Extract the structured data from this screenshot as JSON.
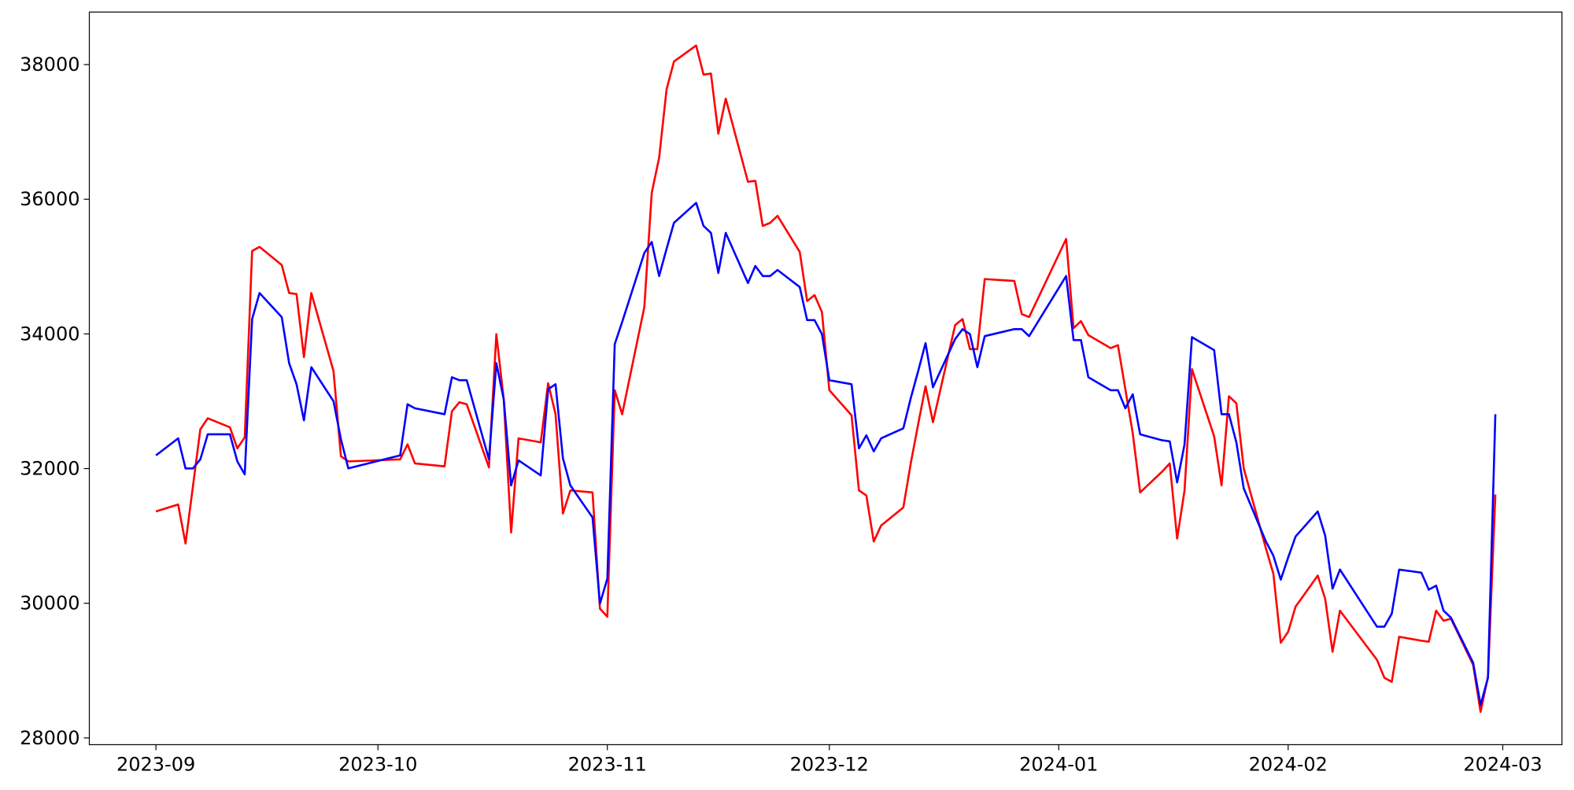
{
  "chart_data": {
    "type": "line",
    "x": [
      "2023-09-01",
      "2023-09-04",
      "2023-09-05",
      "2023-09-06",
      "2023-09-07",
      "2023-09-08",
      "2023-09-11",
      "2023-09-12",
      "2023-09-13",
      "2023-09-14",
      "2023-09-15",
      "2023-09-18",
      "2023-09-19",
      "2023-09-20",
      "2023-09-21",
      "2023-09-22",
      "2023-09-25",
      "2023-09-26",
      "2023-09-27",
      "2023-10-04",
      "2023-10-05",
      "2023-10-06",
      "2023-10-10",
      "2023-10-11",
      "2023-10-12",
      "2023-10-13",
      "2023-10-16",
      "2023-10-17",
      "2023-10-18",
      "2023-10-19",
      "2023-10-20",
      "2023-10-23",
      "2023-10-24",
      "2023-10-25",
      "2023-10-26",
      "2023-10-27",
      "2023-10-30",
      "2023-10-31",
      "2023-11-01",
      "2023-11-02",
      "2023-11-03",
      "2023-11-06",
      "2023-11-07",
      "2023-11-08",
      "2023-11-09",
      "2023-11-10",
      "2023-11-13",
      "2023-11-14",
      "2023-11-15",
      "2023-11-16",
      "2023-11-17",
      "2023-11-20",
      "2023-11-21",
      "2023-11-22",
      "2023-11-23",
      "2023-11-24",
      "2023-11-27",
      "2023-11-28",
      "2023-11-29",
      "2023-11-30",
      "2023-12-01",
      "2023-12-04",
      "2023-12-05",
      "2023-12-06",
      "2023-12-07",
      "2023-12-08",
      "2023-12-11",
      "2023-12-12",
      "2023-12-13",
      "2023-12-14",
      "2023-12-15",
      "2023-12-18",
      "2023-12-19",
      "2023-12-20",
      "2023-12-21",
      "2023-12-22",
      "2023-12-26",
      "2023-12-27",
      "2023-12-28",
      "2024-01-02",
      "2024-01-03",
      "2024-01-04",
      "2024-01-05",
      "2024-01-08",
      "2024-01-09",
      "2024-01-10",
      "2024-01-11",
      "2024-01-12",
      "2024-01-15",
      "2024-01-16",
      "2024-01-17",
      "2024-01-18",
      "2024-01-19",
      "2024-01-22",
      "2024-01-23",
      "2024-01-24",
      "2024-01-25",
      "2024-01-26",
      "2024-01-29",
      "2024-01-30",
      "2024-01-31",
      "2024-02-01",
      "2024-02-02",
      "2024-02-05",
      "2024-02-06",
      "2024-02-07",
      "2024-02-08",
      "2024-02-13",
      "2024-02-14",
      "2024-02-15",
      "2024-02-16",
      "2024-02-19",
      "2024-02-20",
      "2024-02-21",
      "2024-02-22",
      "2024-02-23",
      "2024-02-26",
      "2024-02-27",
      "2024-02-28",
      "2024-02-29"
    ],
    "series": [
      {
        "color": "#ff0000",
        "values": [
          31363,
          31467,
          30887,
          31735,
          32583,
          32747,
          32613,
          32300,
          32464,
          35232,
          35292,
          35024,
          34607,
          34592,
          33655,
          34607,
          33446,
          32182,
          32107,
          32137,
          32360,
          32077,
          32033,
          32851,
          32985,
          32955,
          32018,
          33997,
          33030,
          31051,
          32449,
          32390,
          33268,
          32807,
          31333,
          31676,
          31646,
          29920,
          29801,
          33164,
          32807,
          34399,
          36095,
          36616,
          37628,
          38045,
          38283,
          37851,
          37866,
          36973,
          37494,
          36259,
          36274,
          35604,
          35649,
          35753,
          35217,
          34488,
          34577,
          34324,
          33164,
          32792,
          31676,
          31601,
          30917,
          31155,
          31423,
          32077,
          32658,
          33223,
          32688,
          34131,
          34220,
          33774,
          33774,
          34815,
          34786,
          34295,
          34250,
          35411,
          34086,
          34190,
          33982,
          33789,
          33833,
          33179,
          32524,
          31646,
          31958,
          32077,
          30961,
          31676,
          33476,
          32479,
          31750,
          33074,
          32970,
          32003,
          30813,
          30440,
          29414,
          29577,
          29949,
          30411,
          30068,
          29280,
          29890,
          29161,
          28893,
          28833,
          29503,
          29444,
          29429,
          29890,
          29741,
          29771,
          29086,
          28387,
          28908,
          31616
        ]
      },
      {
        "color": "#0000ff",
        "values": [
          32196,
          32449,
          32003,
          32003,
          32137,
          32509,
          32509,
          32107,
          31914,
          34220,
          34607,
          34250,
          33565,
          33253,
          32717,
          33506,
          33000,
          32435,
          32003,
          32196,
          32955,
          32896,
          32807,
          33357,
          33313,
          33313,
          32137,
          33565,
          33030,
          31750,
          32122,
          31899,
          33179,
          33253,
          32152,
          31750,
          31274,
          29994,
          30366,
          33848,
          34176,
          35202,
          35366,
          34860,
          35262,
          35649,
          35946,
          35604,
          35500,
          34905,
          35500,
          34756,
          35009,
          34860,
          34860,
          34949,
          34696,
          34205,
          34205,
          33997,
          33313,
          33253,
          32300,
          32494,
          32256,
          32449,
          32598,
          33045,
          33446,
          33863,
          33208,
          33923,
          34071,
          33997,
          33506,
          33967,
          34071,
          34071,
          33967,
          34860,
          33908,
          33908,
          33357,
          33164,
          33164,
          32896,
          33104,
          32509,
          32420,
          32405,
          31795,
          32360,
          33952,
          33759,
          32807,
          32807,
          32390,
          31705,
          30917,
          30708,
          30351,
          30679,
          30991,
          31363,
          31006,
          30217,
          30500,
          29652,
          29652,
          29845,
          30500,
          30455,
          30202,
          30262,
          29890,
          29786,
          29116,
          28491,
          28893,
          32807
        ]
      }
    ],
    "xlim": [
      "2023-08-23",
      "2024-03-09"
    ],
    "xticks": [
      "2023-09",
      "2023-10",
      "2023-11",
      "2023-12",
      "2024-01",
      "2024-02",
      "2024-03"
    ],
    "ylim": [
      27900,
      38780
    ],
    "yticks": [
      28000,
      30000,
      32000,
      34000,
      36000,
      38000
    ]
  }
}
